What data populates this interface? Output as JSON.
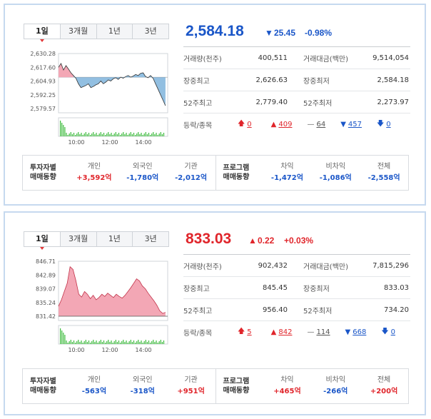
{
  "panels": [
    {
      "tabs": [
        "1일",
        "3개월",
        "1년",
        "3년"
      ],
      "price": "2,584.18",
      "change_arrow": "▼",
      "change": "25.45",
      "change_pct": "-0.98%",
      "direction": "down",
      "chart": {
        "y_ticks": [
          "2,630.28",
          "2,617.60",
          "2,604.93",
          "2,592.25",
          "2,579.57"
        ],
        "x_ticks": [
          "10:00",
          "12:00",
          "14:00"
        ],
        "base_label": "2,604.93"
      },
      "stats": {
        "volume_label": "거래량(천주)",
        "volume": "400,511",
        "amount_label": "거래대금(백만)",
        "amount": "9,514,054",
        "high_label": "장중최고",
        "high": "2,626.63",
        "low_label": "장중최저",
        "low": "2,584.18",
        "w52_high_label": "52주최고",
        "w52_high": "2,779.40",
        "w52_low_label": "52주최저",
        "w52_low": "2,273.97",
        "updown_label": "등락/종목",
        "upper_limit": "0",
        "up": "409",
        "flat": "64",
        "down": "457",
        "lower_limit": "0"
      },
      "investors": {
        "title1": "투자자별",
        "title2": "매매동향",
        "individual_label": "개인",
        "individual": "+3,592억",
        "foreign_label": "외국인",
        "foreign": "-1,780억",
        "institution_label": "기관",
        "institution": "-2,012억"
      },
      "program": {
        "title1": "프로그램",
        "title2": "매매동향",
        "arb_label": "차익",
        "arb": "-1,472억",
        "nonarb_label": "비차익",
        "nonarb": "-1,086억",
        "total_label": "전체",
        "total": "-2,558억"
      }
    },
    {
      "tabs": [
        "1일",
        "3개월",
        "1년",
        "3년"
      ],
      "price": "833.03",
      "change_arrow": "▲",
      "change": "0.22",
      "change_pct": "+0.03%",
      "direction": "up",
      "chart": {
        "y_ticks": [
          "846.71",
          "842.89",
          "839.07",
          "835.24",
          "831.42"
        ],
        "x_ticks": [
          "10:00",
          "12:00",
          "14:00"
        ],
        "base_label": "831.42"
      },
      "stats": {
        "volume_label": "거래량(천주)",
        "volume": "902,432",
        "amount_label": "거래대금(백만)",
        "amount": "7,815,296",
        "high_label": "장중최고",
        "high": "845.45",
        "low_label": "장중최저",
        "low": "833.03",
        "w52_high_label": "52주최고",
        "w52_high": "956.40",
        "w52_low_label": "52주최저",
        "w52_low": "734.20",
        "updown_label": "등락/종목",
        "upper_limit": "5",
        "up": "842",
        "flat": "114",
        "down": "668",
        "lower_limit": "0"
      },
      "investors": {
        "title1": "투자자별",
        "title2": "매매동향",
        "individual_label": "개인",
        "individual": "-563억",
        "foreign_label": "외국인",
        "foreign": "-318억",
        "institution_label": "기관",
        "institution": "+951억"
      },
      "program": {
        "title1": "프로그램",
        "title2": "매매동향",
        "arb_label": "차익",
        "arb": "+465억",
        "nonarb_label": "비차익",
        "nonarb": "-266억",
        "total_label": "전체",
        "total": "+200억"
      }
    }
  ],
  "colors": {
    "up": "#e0252b",
    "down": "#1a56c8",
    "area_up": "#f3a7b5",
    "area_down": "#7fb4dc",
    "volume": "#3dbb3d",
    "border": "#c6d9ef"
  }
}
